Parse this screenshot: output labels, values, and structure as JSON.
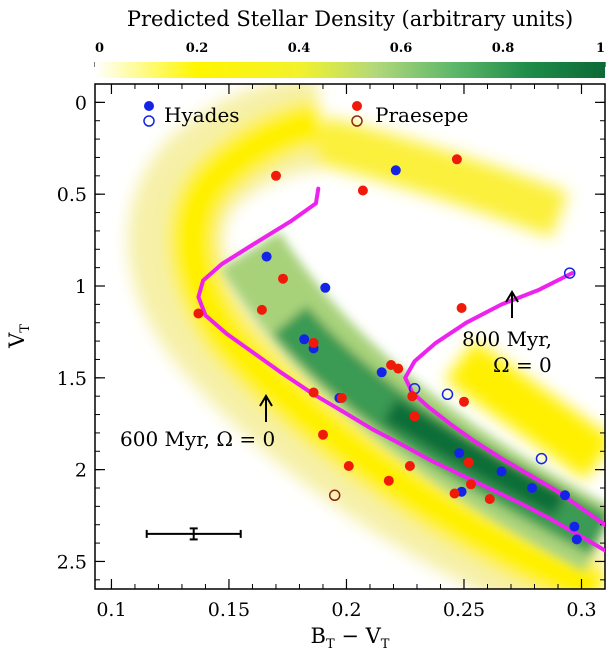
{
  "chart_data": {
    "type": "scatter",
    "colorbar": {
      "title": "Predicted Stellar Density (arbitrary units)",
      "ticks": [
        "0",
        "0.2",
        "0.4",
        "0.6",
        "0.8",
        "1"
      ],
      "range": [
        0,
        1
      ]
    },
    "xlabel_main": "B",
    "xlabel_sub1": "T",
    "xlabel_mid": " − V",
    "xlabel_sub2": "T",
    "ylabel_main": "V",
    "ylabel_sub": "T",
    "xlim": [
      0.093,
      0.31
    ],
    "ylim": [
      2.65,
      -0.1
    ],
    "xticks": [
      0.1,
      0.15,
      0.2,
      0.25,
      0.3
    ],
    "xtick_labels": [
      "0.1",
      "0.15",
      "0.2",
      "0.25",
      "0.3"
    ],
    "yticks": [
      0,
      0.5,
      1,
      1.5,
      2,
      2.5
    ],
    "ytick_labels": [
      "0",
      "0.5",
      "1",
      "1.5",
      "2",
      "2.5"
    ],
    "legend": {
      "placement": "top",
      "hyades": "Hyades",
      "praesepe": "Praesepe"
    },
    "colors": {
      "hyades": "#1424e6",
      "praesepe": "#f01a0a",
      "praesepe_open": "#8b2a12",
      "isochrone": "#ee22ee"
    },
    "series": [
      {
        "name": "Hyades",
        "marker": "filled",
        "points": [
          [
            0.221,
            0.37
          ],
          [
            0.166,
            0.84
          ],
          [
            0.191,
            1.01
          ],
          [
            0.182,
            1.29
          ],
          [
            0.186,
            1.34
          ],
          [
            0.197,
            1.61
          ],
          [
            0.215,
            1.47
          ],
          [
            0.248,
            1.91
          ],
          [
            0.249,
            2.12
          ],
          [
            0.266,
            2.01
          ],
          [
            0.279,
            2.1
          ],
          [
            0.293,
            2.14
          ],
          [
            0.297,
            2.31
          ],
          [
            0.298,
            2.38
          ]
        ]
      },
      {
        "name": "Hyades",
        "marker": "open",
        "points": [
          [
            0.295,
            0.93
          ],
          [
            0.229,
            1.56
          ],
          [
            0.243,
            1.59
          ],
          [
            0.283,
            1.94
          ]
        ]
      },
      {
        "name": "Praesepe",
        "marker": "filled",
        "points": [
          [
            0.247,
            0.31
          ],
          [
            0.17,
            0.4
          ],
          [
            0.207,
            0.48
          ],
          [
            0.173,
            0.96
          ],
          [
            0.164,
            1.13
          ],
          [
            0.137,
            1.15
          ],
          [
            0.249,
            1.12
          ],
          [
            0.186,
            1.31
          ],
          [
            0.219,
            1.43
          ],
          [
            0.222,
            1.45
          ],
          [
            0.186,
            1.58
          ],
          [
            0.198,
            1.61
          ],
          [
            0.228,
            1.6
          ],
          [
            0.25,
            1.63
          ],
          [
            0.229,
            1.71
          ],
          [
            0.19,
            1.81
          ],
          [
            0.252,
            1.96
          ],
          [
            0.227,
            1.98
          ],
          [
            0.201,
            1.98
          ],
          [
            0.253,
            2.08
          ],
          [
            0.218,
            2.06
          ],
          [
            0.246,
            2.13
          ],
          [
            0.261,
            2.16
          ]
        ]
      },
      {
        "name": "Praesepe",
        "marker": "open",
        "points": [
          [
            0.195,
            2.14
          ]
        ]
      }
    ],
    "isochrones": [
      {
        "label": "600 Myr, Ω = 0",
        "points": [
          [
            0.188,
            0.47
          ],
          [
            0.187,
            0.55
          ],
          [
            0.176,
            0.65
          ],
          [
            0.162,
            0.76
          ],
          [
            0.147,
            0.88
          ],
          [
            0.139,
            0.97
          ],
          [
            0.137,
            1.06
          ],
          [
            0.14,
            1.16
          ],
          [
            0.149,
            1.26
          ],
          [
            0.16,
            1.36
          ],
          [
            0.172,
            1.47
          ],
          [
            0.186,
            1.59
          ],
          [
            0.198,
            1.68
          ],
          [
            0.211,
            1.78
          ],
          [
            0.223,
            1.86
          ],
          [
            0.236,
            1.95
          ],
          [
            0.249,
            2.03
          ],
          [
            0.262,
            2.11
          ],
          [
            0.275,
            2.19
          ],
          [
            0.287,
            2.27
          ],
          [
            0.298,
            2.35
          ],
          [
            0.31,
            2.44
          ]
        ]
      },
      {
        "label": "800 Myr,\nΩ = 0",
        "points": [
          [
            0.296,
            0.93
          ],
          [
            0.282,
            1.02
          ],
          [
            0.266,
            1.1
          ],
          [
            0.251,
            1.2
          ],
          [
            0.238,
            1.31
          ],
          [
            0.229,
            1.41
          ],
          [
            0.225,
            1.5
          ],
          [
            0.228,
            1.58
          ],
          [
            0.235,
            1.66
          ],
          [
            0.244,
            1.75
          ],
          [
            0.255,
            1.85
          ],
          [
            0.266,
            1.94
          ],
          [
            0.278,
            2.03
          ],
          [
            0.29,
            2.12
          ],
          [
            0.301,
            2.22
          ],
          [
            0.31,
            2.3
          ]
        ]
      }
    ],
    "annotations": [
      {
        "line1": "600 Myr, Ω = 0"
      },
      {
        "line1": "800 Myr,",
        "line2": "Ω = 0"
      }
    ],
    "error_bar": {
      "x": 0.135,
      "y": 2.35,
      "xerr": 0.02,
      "yerr": 0.03
    }
  }
}
